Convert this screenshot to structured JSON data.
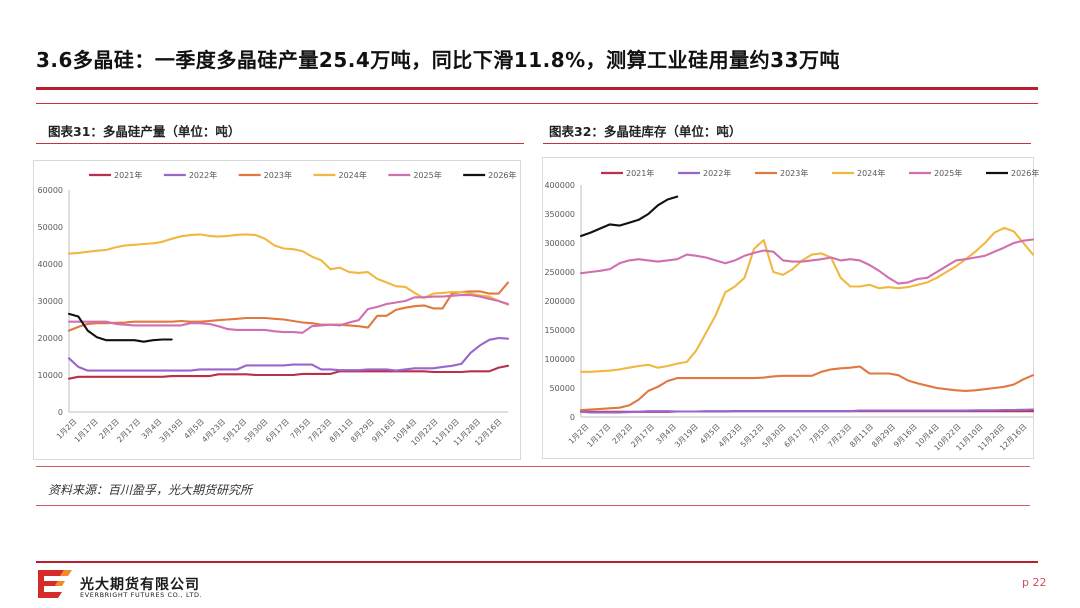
{
  "page": {
    "title": "3.6多晶硅：一季度多晶硅产量25.4万吨，同比下滑11.8%，测算工业硅用量约33万吨",
    "source": "资料来源：百川盈孚，光大期货研究所",
    "page_number": "p 22",
    "brand_cn": "光大期货有限公司",
    "brand_en": "EVERBRIGHT FUTURES CO., LTD.",
    "accent_color": "#b8202e"
  },
  "chart_data": [
    {
      "type": "line",
      "caption": "图表31：多晶硅产量（单位：吨）",
      "ylim": [
        0,
        60000
      ],
      "yticks": [
        0,
        10000,
        20000,
        30000,
        40000,
        50000,
        60000
      ],
      "xticks": [
        "1月2日",
        "1月17日",
        "2月2日",
        "2月17日",
        "3月4日",
        "3月19日",
        "4月5日",
        "4月23日",
        "5月12日",
        "5月30日",
        "6月17日",
        "7月5日",
        "7月23日",
        "8月11日",
        "8月29日",
        "9月16日",
        "10月4日",
        "10月22日",
        "11月10日",
        "11月28日",
        "12月16日"
      ],
      "series": [
        {
          "name": "2021年",
          "color": "#b8304c",
          "values": [
            9000,
            9500,
            9500,
            9500,
            9500,
            9500,
            9500,
            9500,
            9500,
            9500,
            9500,
            9700,
            9700,
            9700,
            9700,
            9700,
            10200,
            10200,
            10200,
            10200,
            10000,
            10000,
            10000,
            10000,
            10000,
            10300,
            10300,
            10300,
            10300,
            11000,
            11000,
            11000,
            11000,
            11000,
            11000,
            11000,
            11000,
            11000,
            11000,
            10800,
            10800,
            10800,
            10800,
            11000,
            11000,
            11000,
            12000,
            12500
          ]
        },
        {
          "name": "2022年",
          "color": "#9966cc",
          "values": [
            14500,
            12200,
            11200,
            11200,
            11200,
            11200,
            11200,
            11200,
            11200,
            11200,
            11200,
            11200,
            11200,
            11200,
            11500,
            11500,
            11500,
            11500,
            11500,
            12600,
            12600,
            12600,
            12600,
            12600,
            12800,
            12800,
            12800,
            11500,
            11500,
            11300,
            11300,
            11300,
            11500,
            11500,
            11500,
            11200,
            11500,
            11800,
            11800,
            11800,
            12200,
            12500,
            13000,
            16000,
            18000,
            19500,
            20000,
            19800
          ]
        },
        {
          "name": "2023年",
          "color": "#e07840",
          "values": [
            22000,
            23000,
            23800,
            24000,
            24000,
            24100,
            24200,
            24400,
            24400,
            24400,
            24400,
            24400,
            24600,
            24400,
            24400,
            24600,
            24800,
            25000,
            25200,
            25400,
            25400,
            25400,
            25200,
            25000,
            24600,
            24200,
            24000,
            23600,
            23600,
            23600,
            23400,
            23200,
            22800,
            26000,
            26000,
            27600,
            28200,
            28600,
            28800,
            28000,
            28000,
            32000,
            32400,
            32600,
            32600,
            32000,
            32000,
            35000
          ]
        },
        {
          "name": "2024年",
          "color": "#f0b840",
          "values": [
            42800,
            43000,
            43300,
            43600,
            43800,
            44500,
            45000,
            45200,
            45400,
            45600,
            46000,
            46800,
            47500,
            47800,
            48000,
            47600,
            47400,
            47600,
            47900,
            48000,
            47800,
            46800,
            45000,
            44200,
            44000,
            43500,
            42000,
            41000,
            38600,
            39000,
            37800,
            37600,
            37800,
            36000,
            35000,
            34000,
            33800,
            32200,
            30800,
            32000,
            32200,
            32400,
            32400,
            32000,
            31500,
            31200,
            30000,
            29000
          ]
        },
        {
          "name": "2025年",
          "color": "#d070b0",
          "values": [
            24400,
            24400,
            24400,
            24400,
            24400,
            23800,
            23600,
            23400,
            23400,
            23400,
            23400,
            23400,
            23400,
            24000,
            24000,
            23800,
            23200,
            22400,
            22200,
            22200,
            22200,
            22200,
            21800,
            21600,
            21600,
            21400,
            23200,
            23400,
            23600,
            23400,
            24200,
            24800,
            27800,
            28400,
            29200,
            29600,
            30000,
            31000,
            31000,
            31200,
            31200,
            31400,
            31600,
            31600,
            31200,
            30600,
            30000,
            29200
          ]
        },
        {
          "name": "2026年",
          "color": "#111111",
          "values": [
            26500,
            25800,
            22000,
            20200,
            19400,
            19400,
            19400,
            19400,
            19000,
            19400,
            19600,
            19600
          ]
        }
      ]
    },
    {
      "type": "line",
      "caption": "图表32：多晶硅库存（单位：吨）",
      "ylim": [
        0,
        400000
      ],
      "yticks": [
        0,
        50000,
        100000,
        150000,
        200000,
        250000,
        300000,
        350000,
        400000
      ],
      "xticks": [
        "1月2日",
        "1月17日",
        "2月2日",
        "2月17日",
        "3月4日",
        "3月19日",
        "4月5日",
        "4月23日",
        "5月12日",
        "5月30日",
        "6月17日",
        "7月5日",
        "7月23日",
        "8月11日",
        "8月29日",
        "9月16日",
        "10月4日",
        "10月22日",
        "11月10日",
        "11月28日",
        "12月16日"
      ],
      "series": [
        {
          "name": "2021年",
          "color": "#b8304c",
          "values": [
            10000,
            9000,
            9000,
            9000,
            9000,
            9000,
            9000,
            9000,
            9000,
            9000,
            9500,
            9500,
            9500,
            9500,
            9500,
            9500,
            10000,
            10000,
            10000,
            10000,
            10000,
            10000,
            10000,
            10000,
            10000,
            10000,
            10000,
            10000,
            10000,
            10000,
            10000,
            10000,
            10000,
            10000,
            10000,
            10000,
            10000,
            10000,
            10000,
            10000,
            10000,
            10000,
            10000,
            10000,
            10000,
            10000,
            10000,
            10000
          ]
        },
        {
          "name": "2022年",
          "color": "#9966cc",
          "values": [
            9000,
            8000,
            8000,
            8000,
            8000,
            8500,
            9000,
            10000,
            10000,
            10000,
            9500,
            9500,
            9500,
            10000,
            10000,
            10000,
            10000,
            10000,
            10000,
            10000,
            10000,
            10000,
            10000,
            10000,
            10000,
            10000,
            10000,
            10000,
            10000,
            11000,
            11000,
            11000,
            11000,
            11000,
            11000,
            11000,
            11000,
            11000,
            11000,
            11000,
            11000,
            11500,
            11500,
            11500,
            12000,
            12000,
            12500,
            13000
          ]
        },
        {
          "name": "2023年",
          "color": "#e07840",
          "values": [
            12000,
            13000,
            14000,
            15000,
            16000,
            20000,
            30000,
            45000,
            52000,
            62000,
            67000,
            67000,
            67000,
            67000,
            67000,
            67000,
            67000,
            67000,
            67000,
            68000,
            70000,
            71000,
            71000,
            71000,
            71000,
            78000,
            82000,
            84000,
            85000,
            87000,
            75000,
            75000,
            75000,
            72000,
            63000,
            58000,
            54000,
            50000,
            48000,
            46000,
            45000,
            46000,
            48000,
            50000,
            52000,
            56000,
            65000,
            72000
          ]
        },
        {
          "name": "2024年",
          "color": "#f0b840",
          "values": [
            78000,
            78000,
            79000,
            80000,
            82000,
            85000,
            88000,
            90000,
            85000,
            88000,
            92000,
            95000,
            115000,
            145000,
            175000,
            215000,
            225000,
            240000,
            290000,
            305000,
            250000,
            245000,
            255000,
            270000,
            280000,
            282000,
            275000,
            240000,
            225000,
            225000,
            228000,
            222000,
            224000,
            222000,
            224000,
            228000,
            232000,
            240000,
            250000,
            260000,
            272000,
            285000,
            300000,
            318000,
            326000,
            320000,
            300000,
            280000
          ]
        },
        {
          "name": "2025年",
          "color": "#d070b0",
          "values": [
            248000,
            250000,
            252000,
            255000,
            265000,
            270000,
            272000,
            270000,
            268000,
            270000,
            272000,
            280000,
            278000,
            275000,
            270000,
            265000,
            270000,
            278000,
            283000,
            287000,
            285000,
            270000,
            268000,
            268000,
            270000,
            272000,
            275000,
            270000,
            272000,
            270000,
            262000,
            252000,
            240000,
            230000,
            232000,
            238000,
            240000,
            250000,
            260000,
            270000,
            272000,
            275000,
            278000,
            285000,
            292000,
            300000,
            304000,
            306000
          ]
        },
        {
          "name": "2026年",
          "color": "#111111",
          "values": [
            312000,
            318000,
            325000,
            332000,
            330000,
            335000,
            340000,
            350000,
            365000,
            375000,
            380000
          ]
        }
      ]
    }
  ]
}
